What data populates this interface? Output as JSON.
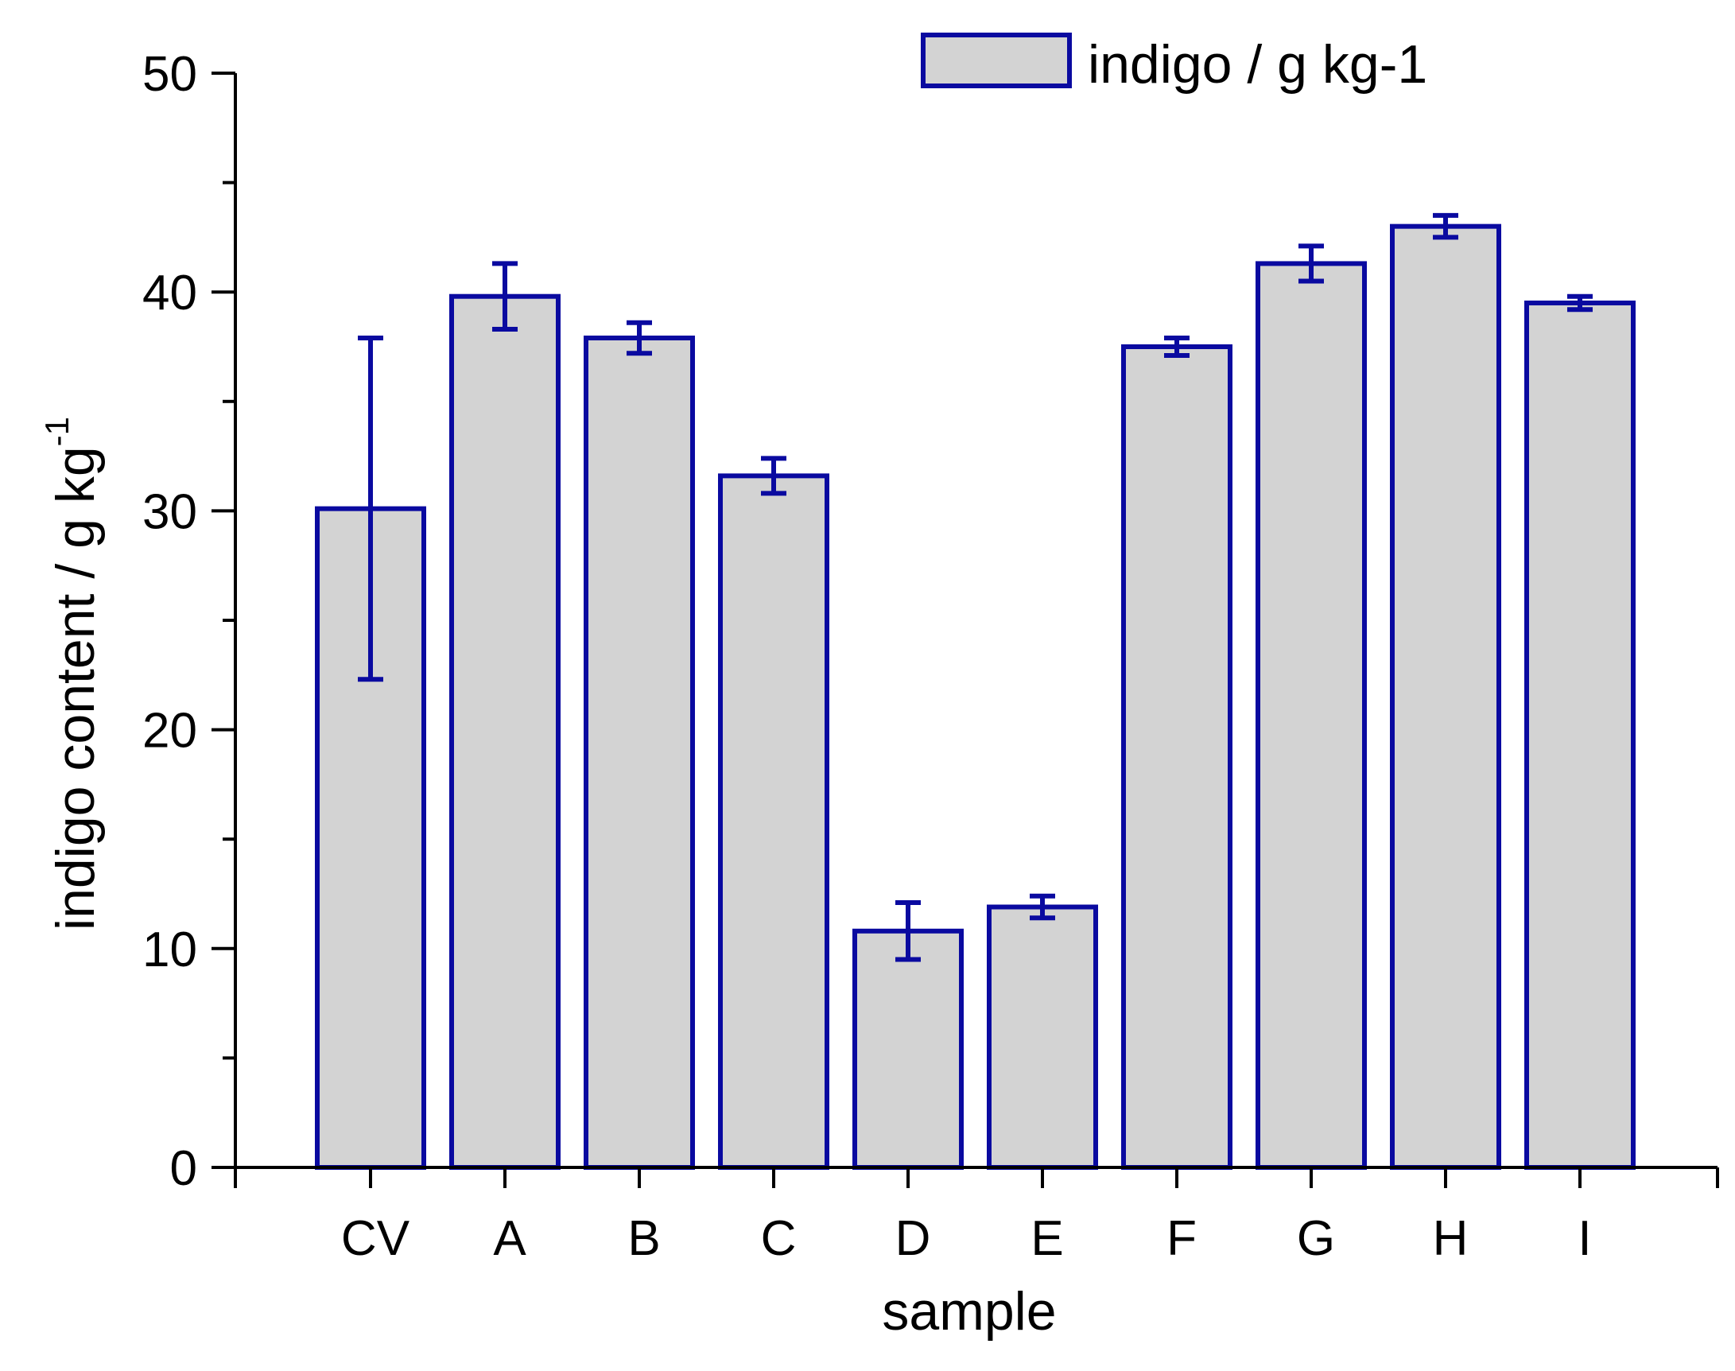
{
  "chart_data": {
    "type": "bar",
    "categories": [
      "CV",
      "A",
      "B",
      "C",
      "D",
      "E",
      "F",
      "G",
      "H",
      "I"
    ],
    "series": [
      {
        "name": "indigo / g kg-1",
        "values": [
          30.1,
          39.8,
          37.9,
          31.6,
          10.8,
          11.9,
          37.5,
          41.3,
          43.0,
          39.5
        ],
        "errors": [
          7.8,
          1.5,
          0.7,
          0.8,
          1.3,
          0.5,
          0.4,
          0.8,
          0.5,
          0.3
        ]
      }
    ],
    "title": "",
    "xlabel": "sample",
    "ylabel": "indigo content / g kg",
    "ylabel_superscript": "-1",
    "ylim": [
      0,
      50
    ],
    "y_ticks": [
      "0",
      "10",
      "20",
      "30",
      "40",
      "50"
    ],
    "grid": false,
    "legend_position": "top-right",
    "colors": {
      "bar_fill": "#d3d3d3",
      "bar_edge": "#0a0aa0",
      "axis": "#000000"
    }
  }
}
